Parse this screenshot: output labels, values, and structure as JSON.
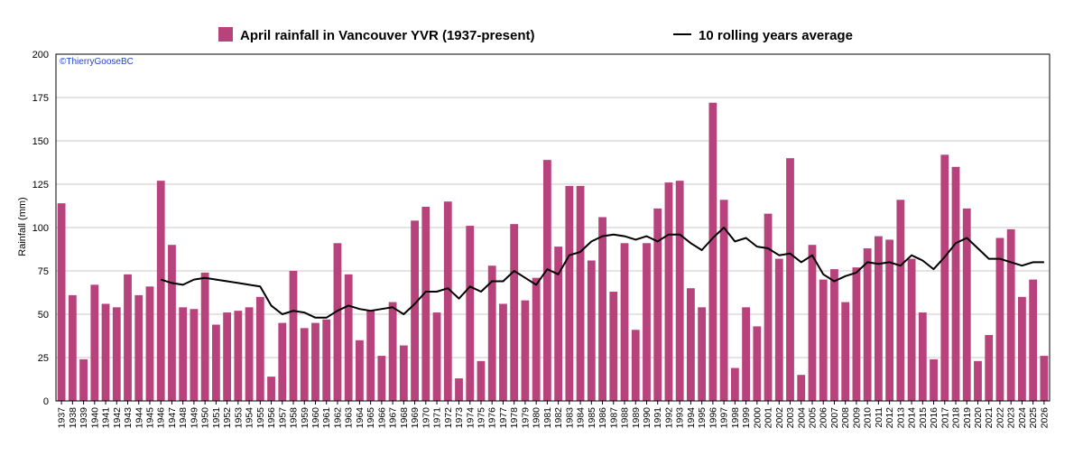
{
  "legend": {
    "bar_label": "April rainfall in Vancouver YVR (1937-present)",
    "line_label": "10 rolling years average"
  },
  "credit": "©ThierryGooseBC",
  "colors": {
    "bar": "#b8427b",
    "line": "#000000",
    "credit": "#2244cc",
    "grid": "#c8c8c8"
  },
  "chart_data": {
    "type": "bar",
    "title": "",
    "xlabel": "",
    "ylabel": "Rainfall (mm)",
    "ylim": [
      0,
      200
    ],
    "yticks": [
      0,
      25,
      50,
      75,
      100,
      125,
      150,
      175,
      200
    ],
    "grid": true,
    "legend_position": "top",
    "categories": [
      "1937",
      "1938",
      "1939",
      "1940",
      "1941",
      "1942",
      "1943",
      "1944",
      "1945",
      "1946",
      "1947",
      "1948",
      "1949",
      "1950",
      "1951",
      "1952",
      "1953",
      "1954",
      "1955",
      "1956",
      "1957",
      "1958",
      "1959",
      "1960",
      "1961",
      "1962",
      "1963",
      "1964",
      "1965",
      "1966",
      "1967",
      "1968",
      "1969",
      "1970",
      "1971",
      "1972",
      "1973",
      "1974",
      "1975",
      "1976",
      "1977",
      "1978",
      "1979",
      "1980",
      "1981",
      "1982",
      "1983",
      "1984",
      "1985",
      "1986",
      "1987",
      "1988",
      "1989",
      "1990",
      "1991",
      "1992",
      "1993",
      "1994",
      "1995",
      "1996",
      "1997",
      "1998",
      "1999",
      "2000",
      "2001",
      "2002",
      "2003",
      "2004",
      "2005",
      "2006",
      "2007",
      "2008",
      "2009",
      "2010",
      "2011",
      "2012",
      "2013",
      "2014",
      "2015",
      "2016",
      "2017",
      "2018",
      "2019",
      "2020",
      "2021",
      "2022",
      "2023",
      "2024",
      "2025",
      "2026"
    ],
    "series": [
      {
        "name": "April rainfall in Vancouver YVR (1937-present)",
        "type": "bar",
        "values": [
          114,
          61,
          24,
          67,
          56,
          54,
          73,
          61,
          66,
          127,
          90,
          54,
          53,
          74,
          44,
          51,
          52,
          54,
          60,
          14,
          45,
          75,
          42,
          45,
          47,
          91,
          73,
          35,
          52,
          26,
          57,
          32,
          104,
          112,
          51,
          115,
          13,
          101,
          23,
          78,
          56,
          102,
          58,
          71,
          139,
          89,
          124,
          124,
          81,
          106,
          63,
          91,
          41,
          91,
          111,
          126,
          127,
          65,
          54,
          172,
          116,
          19,
          54,
          43,
          108,
          82,
          140,
          15,
          90,
          70,
          76,
          57,
          77,
          88,
          95,
          93,
          116,
          82,
          51,
          24,
          142,
          135,
          111,
          23,
          38,
          94,
          99,
          60,
          70,
          26
        ]
      },
      {
        "name": "10 rolling years average",
        "type": "line",
        "values": [
          null,
          null,
          null,
          null,
          null,
          null,
          null,
          null,
          null,
          70,
          68,
          67,
          70,
          71,
          70,
          69,
          68,
          67,
          66,
          55,
          50,
          52,
          51,
          48,
          48,
          52,
          55,
          53,
          52,
          53,
          54,
          50,
          56,
          63,
          63,
          65,
          59,
          66,
          63,
          69,
          69,
          75,
          71,
          67,
          76,
          73,
          84,
          86,
          92,
          95,
          96,
          95,
          93,
          95,
          92,
          96,
          96,
          91,
          87,
          94,
          100,
          92,
          94,
          89,
          88,
          84,
          85,
          80,
          84,
          73,
          69,
          72,
          74,
          80,
          79,
          80,
          78,
          84,
          81,
          76,
          83,
          91,
          94,
          88,
          82,
          82,
          80,
          78,
          80,
          80
        ]
      }
    ]
  }
}
